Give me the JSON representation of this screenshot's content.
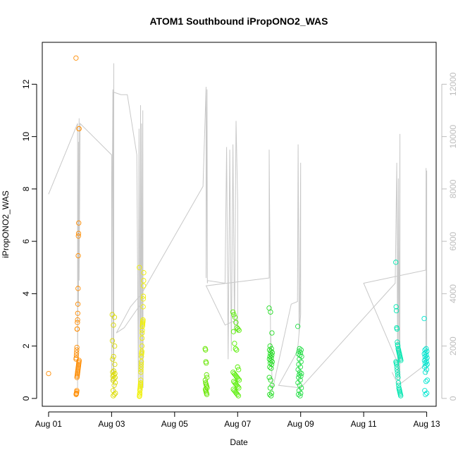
{
  "chart_data": {
    "type": "scatter",
    "title": "ATOM1 Southbound iPropONO2_WAS",
    "xlabel": "Date",
    "ylabel": "iPropONO2_WAS",
    "x_ticks": [
      "Aug 01",
      "Aug 03",
      "Aug 05",
      "Aug 07",
      "Aug 09",
      "Aug 11",
      "Aug 13"
    ],
    "x_tick_days": [
      1,
      3,
      5,
      7,
      9,
      11,
      13
    ],
    "xlim_days": [
      0.8,
      13.3
    ],
    "y_ticks": [
      "0",
      "2",
      "4",
      "6",
      "8",
      "10",
      "12"
    ],
    "y_tick_values": [
      0,
      2,
      4,
      6,
      8,
      10,
      12
    ],
    "ylim": [
      -0.3,
      13.6
    ],
    "y2_ticks": [
      "0",
      "2000",
      "4000",
      "6000",
      "8000",
      "10000",
      "12000"
    ],
    "y2_tick_values": [
      0,
      2000,
      4000,
      6000,
      8000,
      10000,
      12000
    ],
    "y2lim": [
      -300,
      13600
    ],
    "grid": false,
    "colors": {
      "axis": "#000000",
      "secondary_axis": "#bdbdbd",
      "altitude_line": "#c8c8c8"
    },
    "series": [
      {
        "day_center": 1.0,
        "spread": 0.0,
        "color": "#ff8c00",
        "values": [
          0.95
        ]
      },
      {
        "day_center": 1.92,
        "spread": 0.05,
        "color": "#ff8c00",
        "values": [
          13.0,
          10.3,
          10.3,
          6.7,
          6.3,
          6.2,
          5.45,
          4.2,
          3.6,
          3.25,
          3.0,
          2.9,
          2.65,
          2.65,
          1.95,
          1.85,
          1.75,
          1.65,
          1.55,
          1.5,
          1.45,
          1.4,
          1.35,
          1.3,
          1.25,
          1.2,
          1.15,
          1.1,
          1.05,
          1.0,
          0.95,
          0.9,
          0.85,
          0.8,
          0.3,
          0.25,
          0.2,
          0.18,
          0.15
        ]
      },
      {
        "day_center": 3.07,
        "spread": 0.05,
        "color": "#dcdc00",
        "values": [
          3.2,
          3.1,
          2.8,
          2.2,
          2.0,
          1.6,
          1.5,
          1.3,
          1.05,
          1.0,
          0.95,
          0.9,
          0.85,
          0.8,
          0.75,
          0.7,
          0.6,
          0.5,
          0.3,
          0.2,
          0.15,
          0.1
        ]
      },
      {
        "day_center": 3.95,
        "spread": 0.07,
        "color": "#f0f000",
        "values": [
          5.0,
          4.8,
          4.5,
          4.3,
          3.9,
          3.8,
          3.5,
          3.0,
          2.95,
          2.9,
          2.85,
          2.8,
          2.75,
          2.6,
          2.5,
          2.3,
          2.0,
          1.8,
          1.75,
          1.7,
          1.6,
          1.4,
          1.3,
          1.2,
          1.1,
          1.0,
          0.7,
          0.6,
          0.55,
          0.5,
          0.45,
          0.4,
          0.35,
          0.3,
          0.2,
          0.15,
          0.1,
          0.08
        ]
      },
      {
        "day_center": 6.0,
        "spread": 0.03,
        "color": "#66e600",
        "values": [
          1.9,
          1.85,
          1.4,
          1.35,
          0.9,
          0.8,
          0.7,
          0.6,
          0.55,
          0.5,
          0.45,
          0.4,
          0.35,
          0.3,
          0.25,
          0.2,
          0.15
        ]
      },
      {
        "day_center": 6.95,
        "spread": 0.1,
        "color": "#55ee00",
        "values": [
          3.3,
          3.2,
          3.1,
          2.9,
          2.7,
          2.65,
          2.6,
          2.55,
          2.1,
          1.9,
          1.85,
          1.2,
          1.1,
          1.0,
          0.95,
          0.9,
          0.85,
          0.8,
          0.75,
          0.7,
          0.65,
          0.6,
          0.55,
          0.5,
          0.45,
          0.4,
          0.35,
          0.3,
          0.25,
          0.2,
          0.15,
          0.1
        ]
      },
      {
        "day_center": 8.05,
        "spread": 0.05,
        "color": "#22dd22",
        "values": [
          3.45,
          3.3,
          2.5,
          2.0,
          1.9,
          1.85,
          1.8,
          1.75,
          1.7,
          1.65,
          1.6,
          1.55,
          1.5,
          1.45,
          1.4,
          1.35,
          1.3,
          1.2,
          1.15,
          0.8,
          0.7,
          0.5,
          0.4,
          0.2,
          0.15,
          0.1
        ]
      },
      {
        "day_center": 8.97,
        "spread": 0.06,
        "color": "#22dd44",
        "values": [
          2.75,
          1.9,
          1.85,
          1.8,
          1.75,
          1.7,
          1.65,
          1.6,
          1.5,
          1.4,
          1.3,
          1.2,
          1.1,
          1.0,
          0.95,
          0.9,
          0.85,
          0.8,
          0.7,
          0.6,
          0.5,
          0.4,
          0.3,
          0.2,
          0.15,
          0.1
        ]
      },
      {
        "day_center": 12.1,
        "spread": 0.08,
        "color": "#00e6b0",
        "values": [
          5.2,
          3.5,
          3.35,
          2.7,
          2.65,
          2.15,
          2.05,
          2.0,
          1.9,
          1.85,
          1.8,
          1.75,
          1.7,
          1.65,
          1.6,
          1.55,
          1.5,
          1.45,
          1.4,
          1.35,
          1.3,
          1.2,
          1.1,
          1.0,
          0.9,
          0.8,
          0.6,
          0.5,
          0.4,
          0.35,
          0.3,
          0.25,
          0.2,
          0.15,
          0.1
        ]
      },
      {
        "day_center": 12.97,
        "spread": 0.05,
        "color": "#00e6d0",
        "values": [
          3.05,
          1.9,
          1.85,
          1.8,
          1.75,
          1.7,
          1.65,
          1.6,
          1.55,
          1.5,
          1.45,
          1.4,
          1.35,
          1.3,
          1.25,
          1.2,
          1.1,
          1.0,
          0.7,
          0.65,
          0.3,
          0.2,
          0.15
        ]
      }
    ],
    "altitude_line": {
      "x_days": [
        1.0,
        1.92,
        1.92,
        1.95,
        1.95,
        1.97,
        1.97,
        2.0,
        3.0,
        3.0,
        3.02,
        3.04,
        3.05,
        3.07,
        3.07,
        3.06,
        3.05,
        3.05,
        3.3,
        3.5,
        3.8,
        3.85,
        3.87,
        3.9,
        3.92,
        3.93,
        3.95,
        3.97,
        3.99,
        4.0,
        4.0,
        3.98,
        3.4,
        3.15,
        3.15,
        3.6,
        3.95,
        3.95,
        5.9,
        6.0,
        6.0,
        6.03,
        6.04,
        6.05,
        6.6,
        6.65,
        6.7,
        6.75,
        6.8,
        6.85,
        6.9,
        6.95,
        7.0,
        7.0,
        6.97,
        6.6,
        6.0,
        6.0,
        8.0,
        8.0,
        8.05,
        8.05,
        8.1,
        8.7,
        8.9,
        8.92,
        8.95,
        8.97,
        9.0,
        9.0,
        8.9,
        8.3,
        9.0,
        12.0,
        12.05,
        12.08,
        12.1,
        12.12,
        12.15,
        12.15,
        12.1,
        11.0,
        12.97,
        12.98,
        13.0,
        13.0,
        12.97,
        12.1,
        11.9
      ],
      "y_values": [
        7800,
        10500,
        400,
        9800,
        3500,
        10700,
        4500,
        10500,
        9300,
        600,
        8000,
        11800,
        1000,
        12800,
        200,
        5000,
        11700,
        11700,
        11600,
        11600,
        9300,
        500,
        10300,
        400,
        11200,
        300,
        10500,
        400,
        11000,
        400,
        3000,
        3700,
        2700,
        2500,
        2500,
        3500,
        4000,
        4000,
        8100,
        11900,
        4600,
        11800,
        4400,
        4500,
        4400,
        9600,
        1500,
        9500,
        1800,
        9700,
        2500,
        10600,
        7500,
        2500,
        3000,
        2800,
        4300,
        4300,
        4600,
        9500,
        1500,
        2500,
        300,
        3600,
        3700,
        9700,
        2500,
        3400,
        9000,
        3200,
        1800,
        500,
        400,
        4400,
        9000,
        700,
        8400,
        1000,
        10100,
        600,
        1300,
        4400,
        4900,
        8800,
        900,
        8700,
        1300,
        500,
        1000
      ]
    }
  }
}
